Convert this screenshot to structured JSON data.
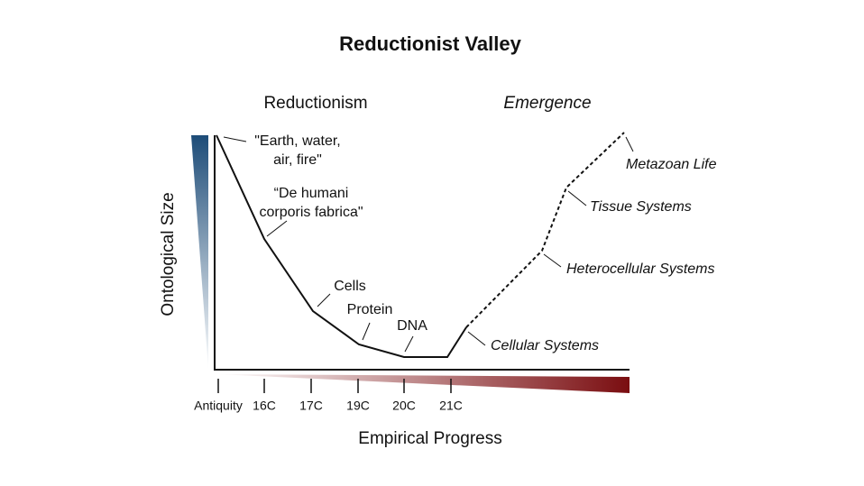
{
  "title": "Reductionist Valley",
  "sections": [
    "Reductionism",
    "Emergence"
  ],
  "y_axis_label": "Ontological Size",
  "x_axis_label": "Empirical Progress",
  "x_ticks": [
    "Antiquity",
    "16C",
    "17C",
    "19C",
    "20C",
    "21C"
  ],
  "annotations": [
    {
      "lines": [
        "\"Earth, water,",
        "air, fire\""
      ]
    },
    {
      "lines": [
        "“De humani",
        "corporis fabrica\""
      ]
    },
    {
      "lines": [
        "Cells"
      ]
    },
    {
      "lines": [
        "Protein"
      ]
    },
    {
      "lines": [
        "DNA"
      ]
    },
    {
      "lines": [
        "Cellular Systems"
      ]
    },
    {
      "lines": [
        "Heterocellular Systems"
      ]
    },
    {
      "lines": [
        "Tissue Systems"
      ]
    },
    {
      "lines": [
        "Metazoan Life"
      ]
    }
  ]
}
